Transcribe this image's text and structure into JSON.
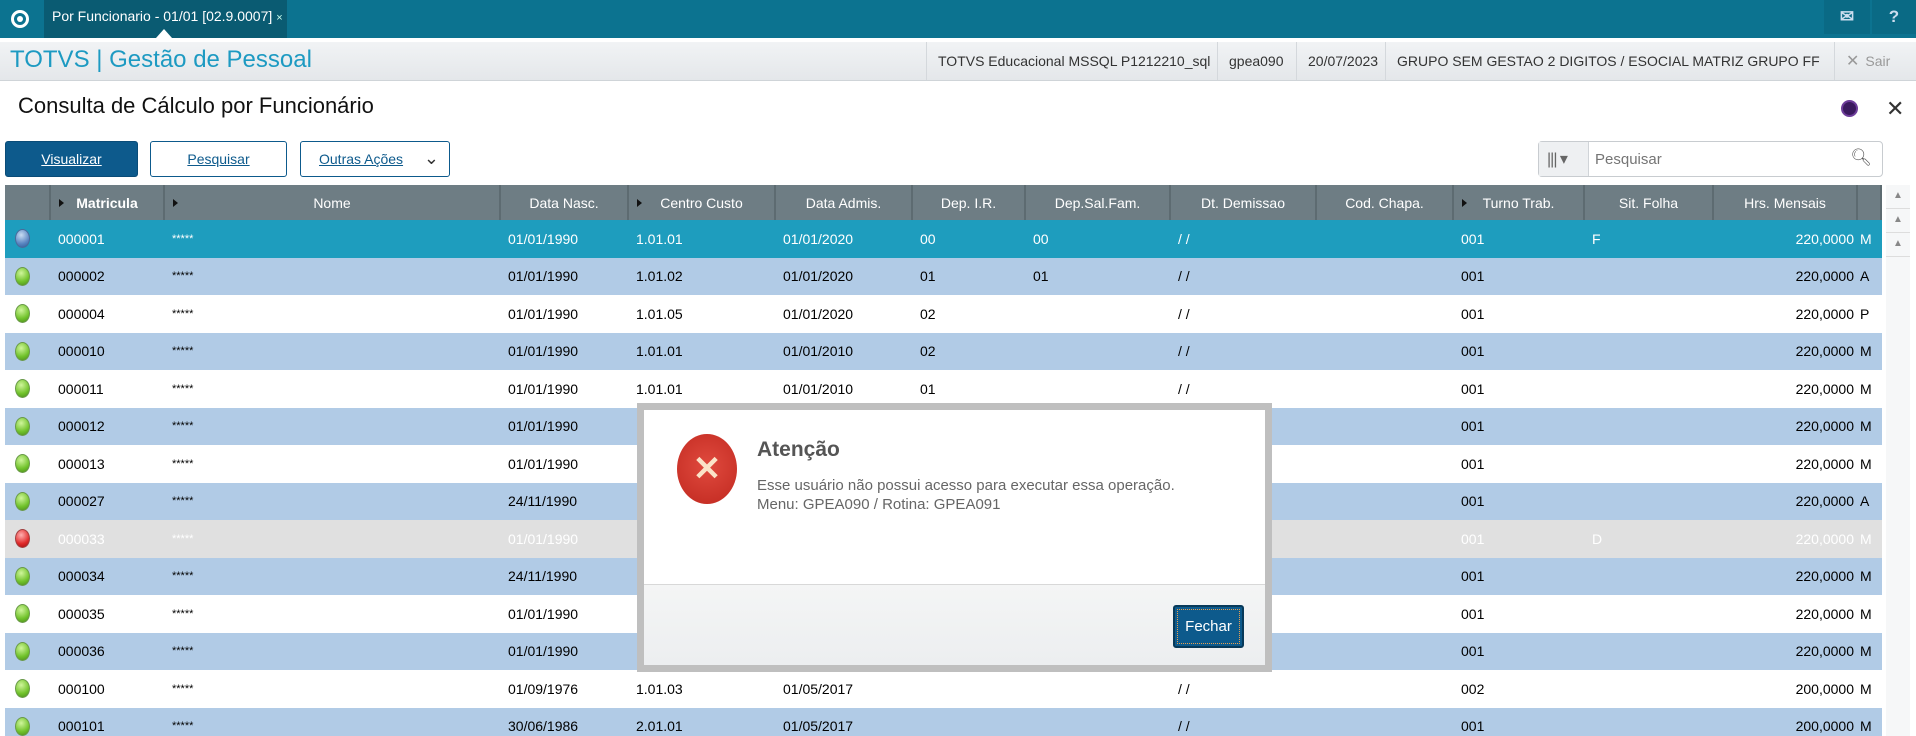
{
  "topbar": {
    "tab_label": "Por Funcionario - 01/01 [02.9.0007]",
    "tab_close": "×",
    "mail_icon": "mail-icon",
    "help_icon": "help-icon"
  },
  "header": {
    "app_title": "TOTVS | Gestão de Pessoal",
    "environment": "TOTVS Educacional MSSQL P1212210_sql",
    "routine": "gpea090",
    "date": "20/07/2023",
    "company": "GRUPO SEM GESTAO 2 DIGITOS / ESOCIAL MATRIZ GRUPO FF",
    "exit_label": "Sair"
  },
  "page": {
    "title": "Consulta de Cálculo por Funcionário"
  },
  "toolbar": {
    "visualizar": "Visualizar",
    "pesquisar": "Pesquisar",
    "outras_acoes": "Outras Ações",
    "search_placeholder": "Pesquisar"
  },
  "grid": {
    "columns": [
      "",
      "Matricula",
      "Nome",
      "Data Nasc.",
      "Centro Custo",
      "Data Admis.",
      "Dep. I.R.",
      "Dep.Sal.Fam.",
      "Dt. Demissao",
      "Cod. Chapa.",
      "Turno Trab.",
      "Sit. Folha",
      "Hrs. Mensais",
      ""
    ],
    "rows": [
      {
        "status": "blue",
        "selected": true,
        "cells": [
          "",
          "000001",
          "*****",
          "01/01/1990",
          "1.01.01",
          "01/01/2020",
          "00",
          "00",
          " / /",
          "",
          "001",
          "F",
          "220,0000",
          "M"
        ]
      },
      {
        "status": "green",
        "cells": [
          "",
          "000002",
          "*****",
          "01/01/1990",
          "1.01.02",
          "01/01/2020",
          "01",
          "01",
          " / /",
          "",
          "001",
          "",
          "220,0000",
          "A"
        ]
      },
      {
        "status": "green",
        "cells": [
          "",
          "000004",
          "*****",
          "01/01/1990",
          "1.01.05",
          "01/01/2020",
          "02",
          "",
          " / /",
          "",
          "001",
          "",
          "220,0000",
          "P"
        ]
      },
      {
        "status": "green",
        "cells": [
          "",
          "000010",
          "*****",
          "01/01/1990",
          "1.01.01",
          "01/01/2010",
          "02",
          "",
          " / /",
          "",
          "001",
          "",
          "220,0000",
          "M"
        ]
      },
      {
        "status": "green",
        "cells": [
          "",
          "000011",
          "*****",
          "01/01/1990",
          "1.01.01",
          "01/01/2010",
          "01",
          "",
          " / /",
          "",
          "001",
          "",
          "220,0000",
          "M"
        ]
      },
      {
        "status": "green",
        "cells": [
          "",
          "000012",
          "*****",
          "01/01/1990",
          "",
          "",
          "",
          "",
          "",
          "",
          "001",
          "",
          "220,0000",
          "M"
        ]
      },
      {
        "status": "green",
        "cells": [
          "",
          "000013",
          "*****",
          "01/01/1990",
          "",
          "",
          "",
          "",
          "",
          "",
          "001",
          "",
          "220,0000",
          "M"
        ]
      },
      {
        "status": "green",
        "cells": [
          "",
          "000027",
          "*****",
          "24/11/1990",
          "",
          "",
          "",
          "",
          "",
          "",
          "001",
          "",
          "220,0000",
          "A"
        ]
      },
      {
        "status": "red",
        "disabled": true,
        "cells": [
          "",
          "000033",
          "*****",
          "01/01/1990",
          "",
          "",
          "",
          "",
          "",
          "",
          "001",
          "D",
          "220,0000",
          "M"
        ]
      },
      {
        "status": "green",
        "cells": [
          "",
          "000034",
          "*****",
          "24/11/1990",
          "",
          "",
          "",
          "",
          "",
          "",
          "001",
          "",
          "220,0000",
          "M"
        ]
      },
      {
        "status": "green",
        "cells": [
          "",
          "000035",
          "*****",
          "01/01/1990",
          "",
          "",
          "",
          "",
          "",
          "",
          "001",
          "",
          "220,0000",
          "M"
        ]
      },
      {
        "status": "green",
        "cells": [
          "",
          "000036",
          "*****",
          "01/01/1990",
          "",
          "",
          "",
          "",
          "",
          "",
          "001",
          "",
          "220,0000",
          "M"
        ]
      },
      {
        "status": "green",
        "cells": [
          "",
          "000100",
          "*****",
          "01/09/1976",
          "1.01.03",
          "01/05/2017",
          "",
          "",
          " / /",
          "",
          "002",
          "",
          "200,0000",
          "M"
        ]
      },
      {
        "status": "green",
        "cells": [
          "",
          "000101",
          "*****",
          "30/06/1986",
          "2.01.01",
          "01/05/2017",
          "",
          "",
          " / /",
          "",
          "001",
          "",
          "200,0000",
          "M"
        ]
      }
    ]
  },
  "dialog": {
    "title": "Atenção",
    "message_line1": "Esse usuário não possui acesso para executar essa operação.",
    "message_line2": "Menu: GPEA090 / Rotina: GPEA091",
    "close_label": "Fechar",
    "icon": "error-x-icon"
  },
  "colors": {
    "topbar": "#0c7390",
    "selected_row": "#1e9dbe",
    "alt_row": "#b1cbe6",
    "primary_button": "#0d5a8c",
    "app_title": "#1d9ac2"
  }
}
